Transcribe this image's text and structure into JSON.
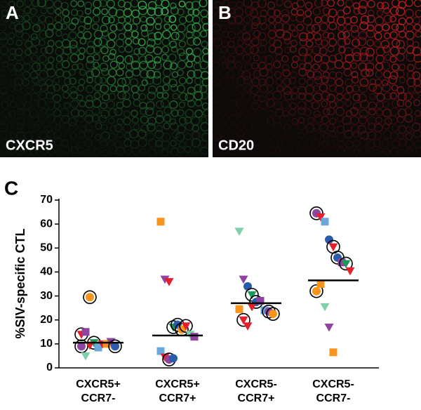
{
  "panels": [
    {
      "label": "A",
      "caption": "CXCR5",
      "color": "#3fd25a"
    },
    {
      "label": "B",
      "caption": "CD20",
      "color": "#e0232a"
    }
  ],
  "figure_label": "C",
  "chart_data": {
    "type": "dot",
    "y_label": "%SIV-specific CTL",
    "categories": [
      [
        "CXCR5+",
        "CCR7-"
      ],
      [
        "CXCR5+",
        "CCR7+"
      ],
      [
        "CXCR5-",
        "CCR7+"
      ],
      [
        "CXCR5-",
        "CCR7-"
      ]
    ],
    "ylim": [
      0,
      70
    ],
    "yticks": [
      0,
      10,
      20,
      30,
      40,
      50,
      60,
      70
    ],
    "means": [
      10.5,
      13.5,
      27,
      36.5
    ],
    "values": [
      [
        14,
        15,
        29.5,
        10.5,
        8.5,
        10,
        10,
        11,
        9,
        9,
        5,
        9.5
      ],
      [
        61,
        37,
        36,
        17,
        18,
        16,
        17.5,
        14,
        13,
        7,
        4.5,
        3.5,
        4
      ],
      [
        57,
        37,
        34,
        30.5,
        27.5,
        28,
        24,
        23.5,
        22.5,
        24.5,
        20,
        17.5,
        25.5
      ],
      [
        64.5,
        63,
        61,
        53.5,
        50.5,
        46,
        44,
        43.5,
        40.5,
        32,
        35,
        25.5,
        17,
        6.5
      ]
    ],
    "markers": [
      [
        {
          "shape": "triangle",
          "color": "#e4202a",
          "circled": true
        },
        {
          "shape": "square",
          "color": "#8e44a0",
          "circled": false
        },
        {
          "shape": "circle",
          "color": "#f7941d",
          "circled": true
        },
        {
          "shape": "triangle",
          "color": "#1a9a5a",
          "circled": true
        },
        {
          "shape": "square",
          "color": "#6aa8dc",
          "circled": false
        },
        {
          "shape": "triangle",
          "color": "#e4202a",
          "circled": false
        },
        {
          "shape": "square",
          "color": "#f7941d",
          "circled": false
        },
        {
          "shape": "triangle",
          "color": "#8e44a0",
          "circled": false
        },
        {
          "shape": "circle",
          "color": "#2a5caa",
          "circled": true
        },
        {
          "shape": "circle",
          "color": "#8e44a0",
          "circled": true
        },
        {
          "shape": "triangle",
          "color": "#7fd0a8",
          "circled": false
        },
        {
          "shape": "triangle",
          "color": "#e4202a",
          "circled": false
        }
      ],
      [
        {
          "shape": "square",
          "color": "#f7941d",
          "circled": false
        },
        {
          "shape": "triangle",
          "color": "#8e44a0",
          "circled": false
        },
        {
          "shape": "triangle",
          "color": "#e4202a",
          "circled": false
        },
        {
          "shape": "triangle",
          "color": "#1a9a5a",
          "circled": true
        },
        {
          "shape": "circle",
          "color": "#2a5caa",
          "circled": true
        },
        {
          "shape": "circle",
          "color": "#f7941d",
          "circled": true
        },
        {
          "shape": "triangle",
          "color": "#e4202a",
          "circled": true
        },
        {
          "shape": "triangle",
          "color": "#7fd0a8",
          "circled": false
        },
        {
          "shape": "square",
          "color": "#8e44a0",
          "circled": false
        },
        {
          "shape": "square",
          "color": "#6aa8dc",
          "circled": false
        },
        {
          "shape": "triangle",
          "color": "#e4202a",
          "circled": false
        },
        {
          "shape": "circle",
          "color": "#8e44a0",
          "circled": true
        },
        {
          "shape": "circle",
          "color": "#2a5caa",
          "circled": false
        }
      ],
      [
        {
          "shape": "triangle",
          "color": "#7fd0a8",
          "circled": false
        },
        {
          "shape": "triangle",
          "color": "#8e44a0",
          "circled": false
        },
        {
          "shape": "circle",
          "color": "#2a5caa",
          "circled": false
        },
        {
          "shape": "triangle",
          "color": "#1a9a5a",
          "circled": true
        },
        {
          "shape": "circle",
          "color": "#2a5caa",
          "circled": true
        },
        {
          "shape": "square",
          "color": "#8e44a0",
          "circled": false
        },
        {
          "shape": "square",
          "color": "#6aa8dc",
          "circled": false
        },
        {
          "shape": "circle",
          "color": "#8e44a0",
          "circled": true
        },
        {
          "shape": "circle",
          "color": "#f7941d",
          "circled": true
        },
        {
          "shape": "square",
          "color": "#f7941d",
          "circled": false
        },
        {
          "shape": "triangle",
          "color": "#e4202a",
          "circled": true
        },
        {
          "shape": "triangle",
          "color": "#e4202a",
          "circled": false
        },
        {
          "shape": "triangle",
          "color": "#e4202a",
          "circled": false
        }
      ],
      [
        {
          "shape": "circle",
          "color": "#8e44a0",
          "circled": true
        },
        {
          "shape": "triangle",
          "color": "#e4202a",
          "circled": false
        },
        {
          "shape": "square",
          "color": "#6aa8dc",
          "circled": false
        },
        {
          "shape": "circle",
          "color": "#2a5caa",
          "circled": false
        },
        {
          "shape": "triangle",
          "color": "#e4202a",
          "circled": true
        },
        {
          "shape": "circle",
          "color": "#2a5caa",
          "circled": true
        },
        {
          "shape": "square",
          "color": "#8e44a0",
          "circled": false
        },
        {
          "shape": "triangle",
          "color": "#1a9a5a",
          "circled": true
        },
        {
          "shape": "triangle",
          "color": "#e4202a",
          "circled": false
        },
        {
          "shape": "circle",
          "color": "#f7941d",
          "circled": true
        },
        {
          "shape": "square",
          "color": "#f7941d",
          "circled": false
        },
        {
          "shape": "triangle",
          "color": "#7fd0a8",
          "circled": false
        },
        {
          "shape": "triangle",
          "color": "#8e44a0",
          "circled": false
        },
        {
          "shape": "square",
          "color": "#f7941d",
          "circled": false
        }
      ]
    ]
  }
}
